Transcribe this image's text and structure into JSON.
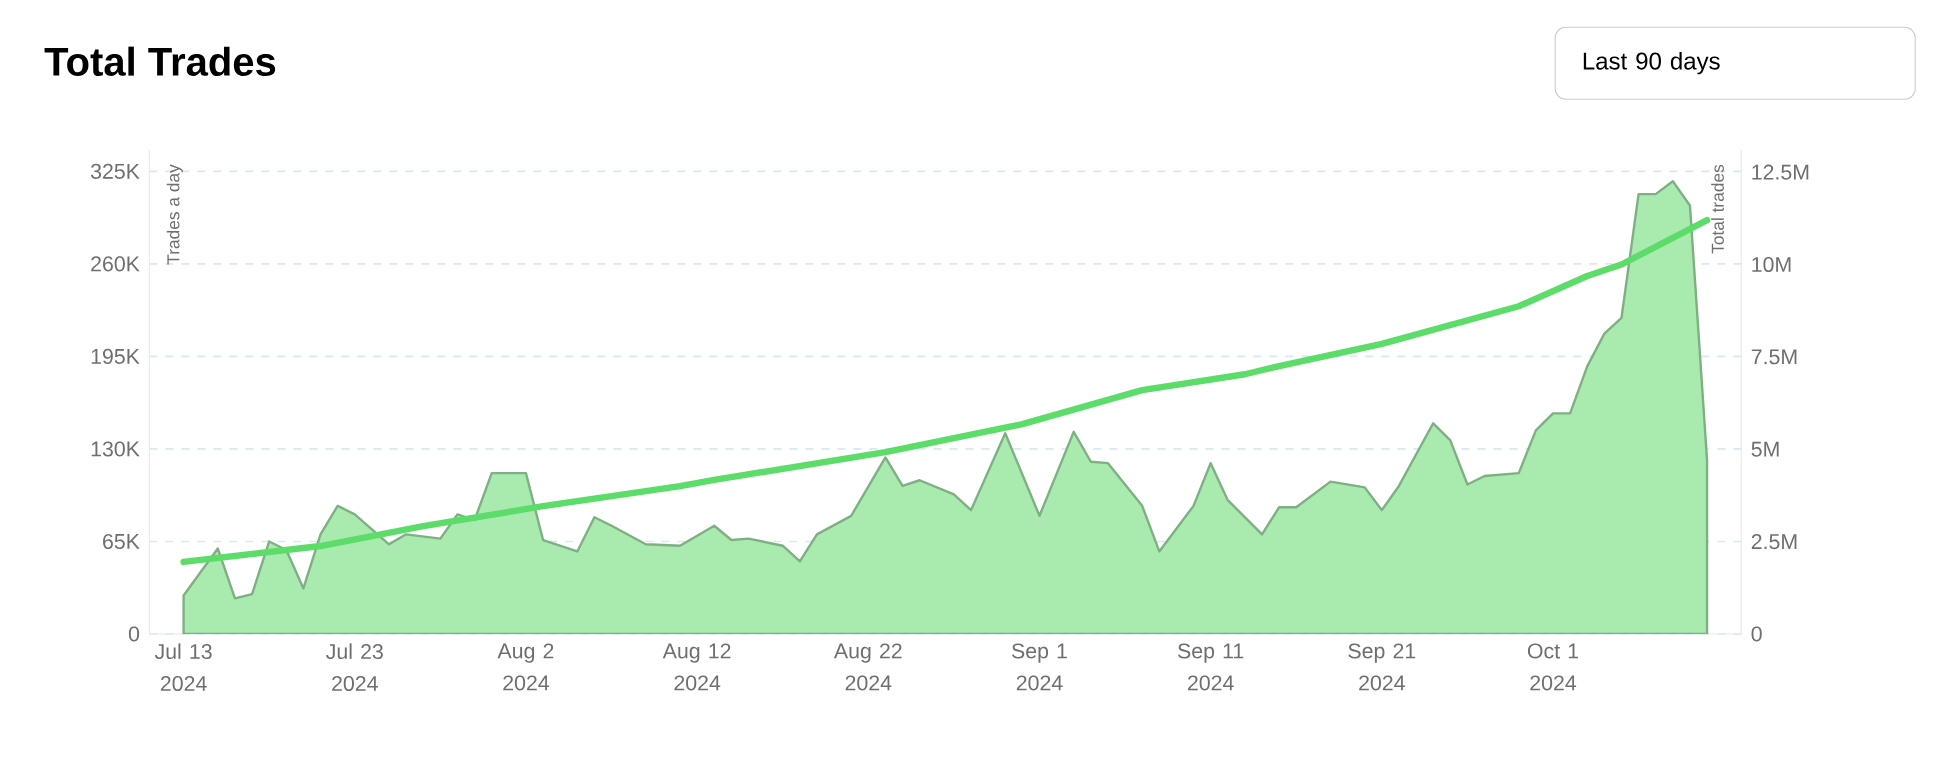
{
  "chart_data": {
    "type": "area",
    "title": "Total Trades",
    "ylabel": "Trades a day",
    "y2label": "Total trades",
    "annotations": [
      "Last 90 days"
    ],
    "xlim": [
      "2024-07-11",
      "2024-10-12"
    ],
    "xticks": [
      {
        "value": "2024-07-13",
        "label": "Jul 13 2024"
      },
      {
        "value": "2024-07-23",
        "label": "Jul 23 2024"
      },
      {
        "value": "2024-08-02",
        "label": "Aug 2 2024"
      },
      {
        "value": "2024-08-12",
        "label": "Aug 12 2024"
      },
      {
        "value": "2024-08-22",
        "label": "Aug 22 2024"
      },
      {
        "value": "2024-09-01",
        "label": "Sep 1 2024"
      },
      {
        "value": "2024-09-11",
        "label": "Sep 11 2024"
      },
      {
        "value": "2024-09-21",
        "label": "Sep 21 2024"
      },
      {
        "value": "2024-10-01",
        "label": "Oct 1 2024"
      }
    ],
    "ylim": [
      0,
      340000
    ],
    "yticks": [
      0,
      {
        "value": 65000,
        "label": "65K"
      },
      {
        "value": 130000,
        "label": "130K"
      },
      {
        "value": 195000,
        "label": "195K"
      },
      {
        "value": 260000,
        "label": "260K"
      },
      {
        "value": 325000,
        "label": "325K"
      }
    ],
    "y2lim": [
      0,
      13100000
    ],
    "y2ticks": [
      0,
      {
        "value": 2500000,
        "label": "2.5M"
      },
      {
        "value": 5000000,
        "label": "5M"
      },
      {
        "value": 7500000,
        "label": "7.5M"
      },
      {
        "value": 10000000,
        "label": "10M"
      },
      {
        "value": 12500000,
        "label": "12.5M"
      }
    ],
    "grid": "y",
    "marker": "none",
    "line_style": "solid",
    "series": [
      {
        "color": "#a9ebaf",
        "x": [
          "2024-07-13",
          "2024-07-15",
          "2024-07-16",
          "2024-07-17",
          "2024-07-18",
          "2024-07-19",
          "2024-07-20",
          "2024-07-21",
          "2024-07-22",
          "2024-07-23",
          "2024-07-25",
          "2024-07-26",
          "2024-07-28",
          "2024-07-29",
          "2024-07-30",
          "2024-07-31",
          "2024-08-02",
          "2024-08-03",
          "2024-08-05",
          "2024-08-06",
          "2024-08-07",
          "2024-08-09",
          "2024-08-11",
          "2024-08-13",
          "2024-08-14",
          "2024-08-15",
          "2024-08-17",
          "2024-08-18",
          "2024-08-19",
          "2024-08-21",
          "2024-08-23",
          "2024-08-24",
          "2024-08-25",
          "2024-08-27",
          "2024-08-28",
          "2024-08-30",
          "2024-09-01",
          "2024-09-03",
          "2024-09-04",
          "2024-09-05",
          "2024-09-07",
          "2024-09-08",
          "2024-09-10",
          "2024-09-11",
          "2024-09-12",
          "2024-09-14",
          "2024-09-15",
          "2024-09-16",
          "2024-09-18",
          "2024-09-20",
          "2024-09-21",
          "2024-09-22",
          "2024-09-24",
          "2024-09-25",
          "2024-09-26",
          "2024-09-27",
          "2024-09-29",
          "2024-09-30",
          "2024-10-01",
          "2024-10-02",
          "2024-10-03",
          "2024-10-04",
          "2024-10-05",
          "2024-10-06",
          "2024-10-07",
          "2024-10-08",
          "2024-10-09",
          "2024-10-10"
        ],
        "values": [
          27000,
          60000,
          25000,
          28000,
          65000,
          59000,
          32000,
          70000,
          90000,
          84000,
          63000,
          70000,
          67000,
          84000,
          80000,
          113000,
          113000,
          66000,
          58000,
          82000,
          76000,
          63000,
          62000,
          76000,
          66000,
          67000,
          62000,
          51000,
          70000,
          83000,
          124000,
          104000,
          108000,
          98000,
          87000,
          141000,
          83000,
          142000,
          121000,
          120000,
          90000,
          58000,
          90000,
          120000,
          94000,
          70000,
          89000,
          89000,
          107000,
          103000,
          87000,
          104000,
          148000,
          136000,
          105000,
          111000,
          113000,
          143000,
          155000,
          155000,
          188000,
          211000,
          222000,
          309000,
          309000,
          318000,
          301000,
          122000
        ]
      },
      {
        "type": "line",
        "axis": "y2",
        "color": "#5cdc68",
        "x": [
          "2024-07-13",
          "2024-07-21",
          "2024-07-27",
          "2024-08-03",
          "2024-08-11",
          "2024-08-13",
          "2024-08-23",
          "2024-08-31",
          "2024-09-07",
          "2024-09-13",
          "2024-09-15",
          "2024-09-21",
          "2024-09-29",
          "2024-10-03",
          "2024-10-05",
          "2024-10-10"
        ],
        "values": [
          1950000,
          2380000,
          2920000,
          3460000,
          4000000,
          4170000,
          4920000,
          5680000,
          6600000,
          7030000,
          7250000,
          7850000,
          8870000,
          9690000,
          10000000,
          11200000
        ]
      }
    ]
  }
}
